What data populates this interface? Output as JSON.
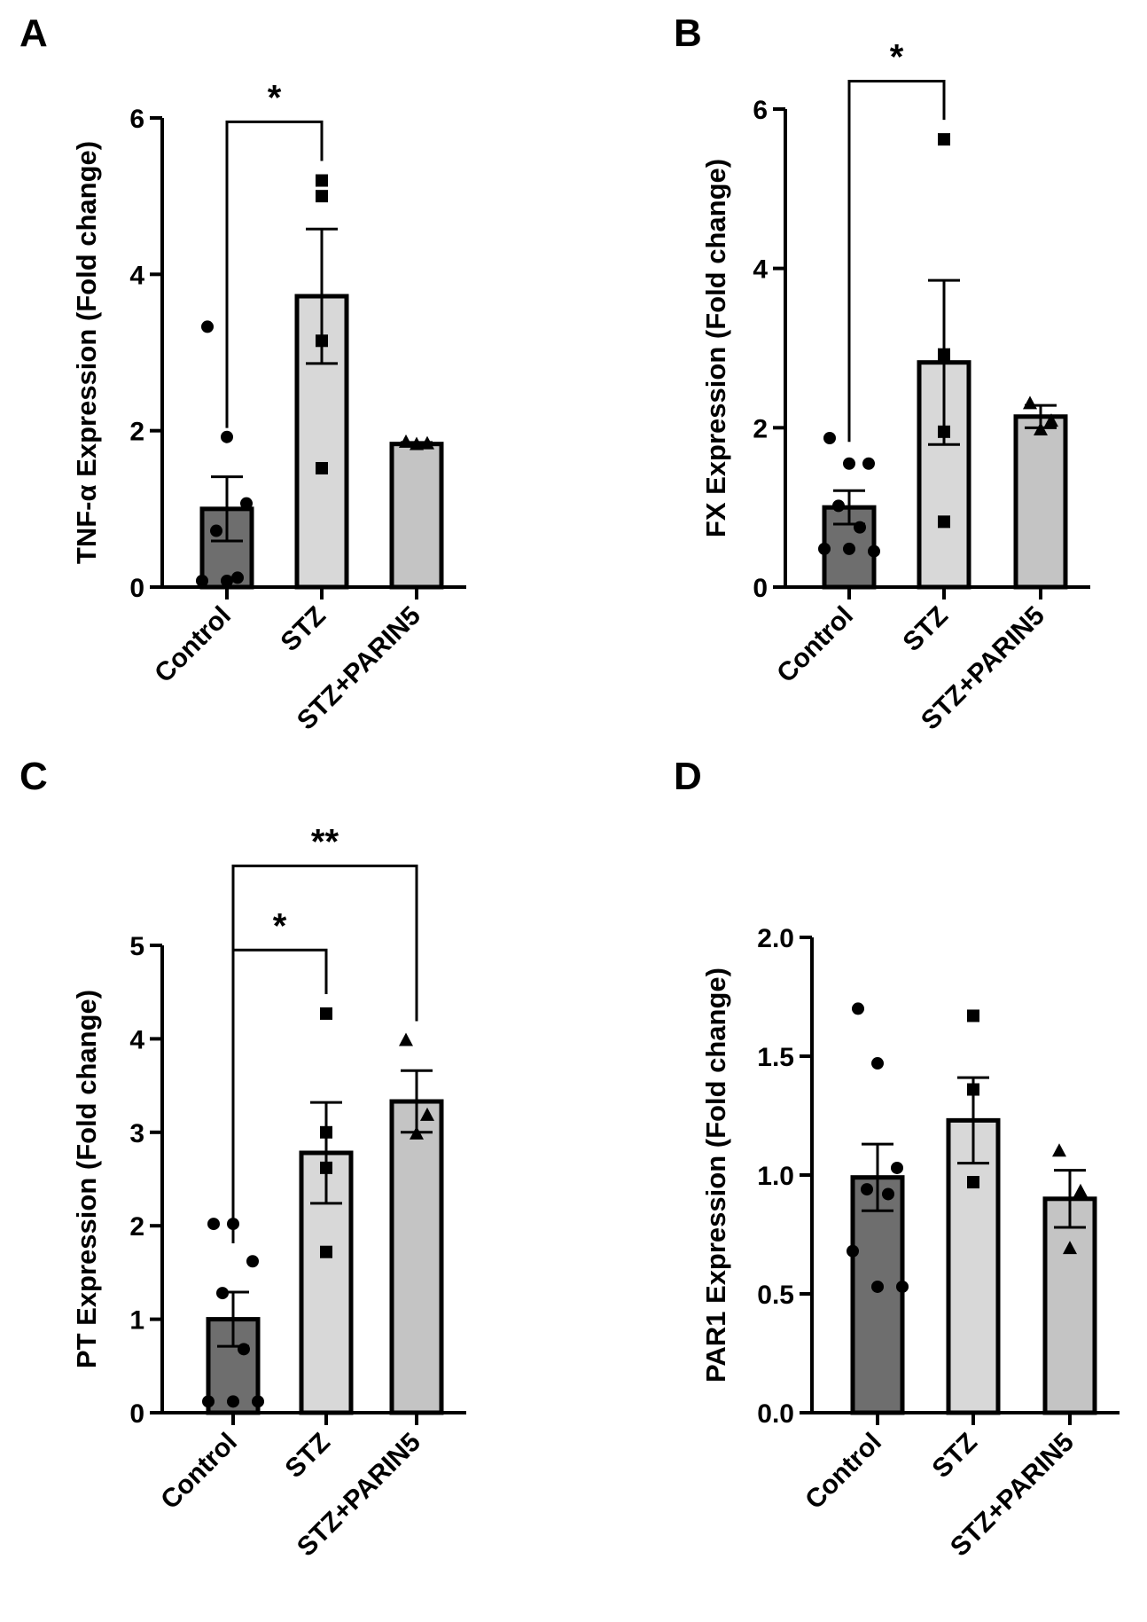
{
  "figure_title": "",
  "chart_data": [
    {
      "panel": "A",
      "type": "bar",
      "ylabel": "TNF-α Expression (Fold change)",
      "categories": [
        "Control",
        "STZ",
        "STZ+PARIN5"
      ],
      "ylim": [
        0,
        6
      ],
      "yticks": [
        0,
        2,
        4,
        6
      ],
      "ytick_labels": [
        "0",
        "2",
        "4",
        "6"
      ],
      "series": [
        {
          "name": "Control",
          "mean": 1.0,
          "sem": 0.41,
          "fill": "#6e6e6e",
          "marker": "circle",
          "points": [
            3.33,
            1.92,
            1.07,
            0.72,
            0.12,
            0.08,
            0.08
          ]
        },
        {
          "name": "STZ",
          "mean": 3.72,
          "sem": 0.86,
          "fill": "#d8d8d8",
          "marker": "square",
          "points": [
            5.2,
            5.0,
            3.15,
            1.52
          ]
        },
        {
          "name": "STZ+PARIN5",
          "mean": 1.83,
          "sem": 0.02,
          "fill": "#c4c4c4",
          "marker": "triangle",
          "points": [
            1.85,
            1.83,
            1.82
          ]
        }
      ],
      "significance": [
        {
          "from": 0,
          "to": 1,
          "label": "*",
          "y": 5.95
        }
      ]
    },
    {
      "panel": "B",
      "type": "bar",
      "ylabel": "FX Expression (Fold change)",
      "categories": [
        "Control",
        "STZ",
        "STZ+PARIN5"
      ],
      "ylim": [
        0,
        6
      ],
      "yticks": [
        0,
        2,
        4,
        6
      ],
      "ytick_labels": [
        "0",
        "2",
        "4",
        "6"
      ],
      "series": [
        {
          "name": "Control",
          "mean": 1.0,
          "sem": 0.21,
          "fill": "#6e6e6e",
          "marker": "circle",
          "points": [
            1.87,
            1.55,
            1.55,
            1.02,
            0.75,
            0.48,
            0.48,
            0.45
          ]
        },
        {
          "name": "STZ",
          "mean": 2.82,
          "sem": 1.03,
          "fill": "#d8d8d8",
          "marker": "square",
          "points": [
            5.62,
            2.92,
            1.95,
            0.82
          ]
        },
        {
          "name": "STZ+PARIN5",
          "mean": 2.14,
          "sem": 0.14,
          "fill": "#c4c4c4",
          "marker": "triangle",
          "points": [
            2.3,
            2.08,
            1.97
          ]
        }
      ],
      "significance": [
        {
          "from": 0,
          "to": 1,
          "label": "*",
          "y": 6.35
        }
      ]
    },
    {
      "panel": "C",
      "type": "bar",
      "ylabel": "PT Expression (Fold change)",
      "categories": [
        "Control",
        "STZ",
        "STZ+PARIN5"
      ],
      "ylim": [
        0,
        5
      ],
      "yticks": [
        0,
        1,
        2,
        3,
        4,
        5
      ],
      "ytick_labels": [
        "0",
        "1",
        "2",
        "3",
        "4",
        "5"
      ],
      "series": [
        {
          "name": "Control",
          "mean": 1.0,
          "sem": 0.29,
          "fill": "#6e6e6e",
          "marker": "circle",
          "points": [
            2.02,
            2.02,
            1.62,
            1.28,
            0.68,
            0.12,
            0.12,
            0.12
          ]
        },
        {
          "name": "STZ",
          "mean": 2.78,
          "sem": 0.54,
          "fill": "#d8d8d8",
          "marker": "square",
          "points": [
            4.27,
            3.0,
            2.62,
            1.72
          ]
        },
        {
          "name": "STZ+PARIN5",
          "mean": 3.33,
          "sem": 0.33,
          "fill": "#c4c4c4",
          "marker": "triangle",
          "points": [
            3.98,
            3.18,
            2.98
          ]
        }
      ],
      "significance": [
        {
          "from": 0,
          "to": 1,
          "label": "*",
          "y": 4.95
        },
        {
          "from": 0,
          "to": 2,
          "label": "**",
          "y": 5.85
        }
      ]
    },
    {
      "panel": "D",
      "type": "bar",
      "ylabel": "PAR1 Expression (Fold change)",
      "categories": [
        "Control",
        "STZ",
        "STZ+PARIN5"
      ],
      "ylim": [
        0,
        2
      ],
      "yticks": [
        0,
        0.5,
        1,
        1.5,
        2
      ],
      "ytick_labels": [
        "0.0",
        "0.5",
        "1.0",
        "1.5",
        "2.0"
      ],
      "series": [
        {
          "name": "Control",
          "mean": 0.99,
          "sem": 0.14,
          "fill": "#6e6e6e",
          "marker": "circle",
          "points": [
            1.7,
            1.47,
            1.03,
            0.94,
            0.92,
            0.68,
            0.53,
            0.53
          ]
        },
        {
          "name": "STZ",
          "mean": 1.23,
          "sem": 0.18,
          "fill": "#d8d8d8",
          "marker": "square",
          "points": [
            1.67,
            1.36,
            0.97,
            0.97
          ]
        },
        {
          "name": "STZ+PARIN5",
          "mean": 0.9,
          "sem": 0.12,
          "fill": "#c4c4c4",
          "marker": "triangle",
          "points": [
            1.1,
            0.93,
            0.69
          ]
        }
      ],
      "significance": []
    }
  ]
}
